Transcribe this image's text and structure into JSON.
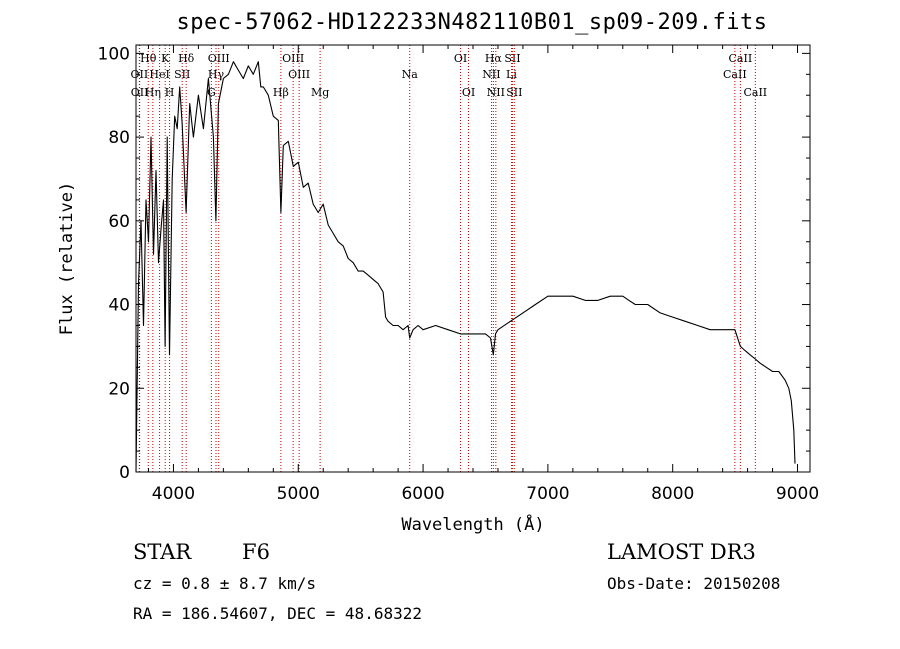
{
  "chart_data": {
    "type": "line",
    "title": "spec-57062-HD122233N482110B01_sp09-209.fits",
    "xlabel": "Wavelength (Å)",
    "ylabel": "Flux (relative)",
    "xlim": [
      3700,
      9100
    ],
    "ylim": [
      0,
      102
    ],
    "xticks": [
      4000,
      5000,
      6000,
      7000,
      8000,
      9000
    ],
    "yticks": [
      0,
      20,
      40,
      60,
      80,
      100
    ],
    "xtick_labels": [
      "4000",
      "5000",
      "6000",
      "7000",
      "8000",
      "9000"
    ],
    "ytick_labels": [
      "0",
      "20",
      "40",
      "60",
      "80",
      "100"
    ],
    "series": [
      {
        "name": "flux",
        "x": [
          3700,
          3720,
          3740,
          3760,
          3780,
          3800,
          3820,
          3840,
          3860,
          3880,
          3900,
          3920,
          3933,
          3950,
          3968,
          3990,
          4010,
          4030,
          4050,
          4070,
          4101,
          4130,
          4160,
          4200,
          4240,
          4280,
          4320,
          4340,
          4360,
          4400,
          4440,
          4480,
          4520,
          4560,
          4600,
          4640,
          4680,
          4700,
          4720,
          4760,
          4800,
          4840,
          4861,
          4880,
          4920,
          4960,
          5000,
          5040,
          5080,
          5120,
          5160,
          5200,
          5240,
          5280,
          5320,
          5360,
          5400,
          5440,
          5480,
          5520,
          5560,
          5600,
          5640,
          5680,
          5700,
          5720,
          5760,
          5800,
          5840,
          5880,
          5893,
          5920,
          5960,
          6000,
          6100,
          6200,
          6300,
          6400,
          6500,
          6540,
          6563,
          6580,
          6600,
          6700,
          6800,
          6900,
          7000,
          7100,
          7200,
          7300,
          7400,
          7500,
          7600,
          7650,
          7700,
          7800,
          7900,
          8000,
          8100,
          8200,
          8300,
          8400,
          8498,
          8520,
          8542,
          8580,
          8620,
          8662,
          8700,
          8750,
          8800,
          8850,
          8900,
          8930,
          8950,
          8970,
          8980
        ],
        "values": [
          0,
          45,
          60,
          35,
          65,
          55,
          80,
          52,
          72,
          50,
          58,
          65,
          30,
          80,
          28,
          70,
          85,
          82,
          92,
          83,
          62,
          88,
          80,
          90,
          82,
          94,
          80,
          60,
          88,
          94,
          95,
          98,
          96,
          94,
          97,
          95,
          98,
          92,
          92,
          90,
          85,
          84,
          62,
          78,
          79,
          73,
          74,
          68,
          69,
          64,
          62,
          64,
          59,
          57,
          55,
          54,
          51,
          50,
          48,
          48,
          47,
          46,
          45,
          43,
          37,
          36,
          35,
          35,
          34,
          35,
          32,
          34,
          35,
          34,
          35,
          34,
          33,
          33,
          33,
          32,
          28,
          33,
          34,
          36,
          38,
          40,
          42,
          42,
          42,
          41,
          41,
          42,
          42,
          41,
          40,
          40,
          38,
          37,
          36,
          35,
          34,
          34,
          34,
          32,
          30,
          29,
          28,
          27,
          26,
          25,
          24,
          24,
          22,
          20,
          17,
          10,
          2
        ],
        "color": "#000000"
      }
    ],
    "lines": [
      {
        "name": "Hθ",
        "wavelength": 3798,
        "row": 1
      },
      {
        "name": "OII",
        "wavelength": 3727,
        "row": 2
      },
      {
        "name": "OII",
        "wavelength": 3729,
        "row": 3
      },
      {
        "name": "Hη",
        "wavelength": 3835,
        "row": 3
      },
      {
        "name": "K",
        "wavelength": 3934,
        "row": 1
      },
      {
        "name": "HeI",
        "wavelength": 3889,
        "row": 2
      },
      {
        "name": "H",
        "wavelength": 3969,
        "row": 3
      },
      {
        "name": "SII",
        "wavelength": 4070,
        "row": 2
      },
      {
        "name": "Hδ",
        "wavelength": 4102,
        "row": 1
      },
      {
        "name": "OIII",
        "wavelength": 4363,
        "row": 1
      },
      {
        "name": "Hγ",
        "wavelength": 4341,
        "row": 2
      },
      {
        "name": "G",
        "wavelength": 4304,
        "row": 3
      },
      {
        "name": "Hβ",
        "wavelength": 4861,
        "row": 3
      },
      {
        "name": "OIII",
        "wavelength": 4959,
        "row": 1
      },
      {
        "name": "OIII",
        "wavelength": 5007,
        "row": 2
      },
      {
        "name": "Mg",
        "wavelength": 5175,
        "row": 3
      },
      {
        "name": "Na",
        "wavelength": 5893,
        "row": 2
      },
      {
        "name": "OI",
        "wavelength": 6300,
        "row": 1
      },
      {
        "name": "OI",
        "wavelength": 6364,
        "row": 3
      },
      {
        "name": "Hα",
        "wavelength": 6563,
        "row": 1
      },
      {
        "name": "NII",
        "wavelength": 6548,
        "row": 2
      },
      {
        "name": "NII",
        "wavelength": 6583,
        "row": 3
      },
      {
        "name": "SII",
        "wavelength": 6716,
        "row": 1
      },
      {
        "name": "Li",
        "wavelength": 6708,
        "row": 2
      },
      {
        "name": "SII",
        "wavelength": 6731,
        "row": 3
      },
      {
        "name": "CaII",
        "wavelength": 8542,
        "row": 1
      },
      {
        "name": "CaII",
        "wavelength": 8498,
        "row": 2
      },
      {
        "name": "CaII",
        "wavelength": 8662,
        "row": 3
      }
    ],
    "line_color": "#cc0000"
  },
  "info": {
    "object_class": "STAR",
    "subclass": "F6",
    "survey": "LAMOST DR3",
    "cz": "cz = 0.8 ± 8.7 km/s",
    "obs_date": "Obs-Date: 20150208",
    "coords": "RA = 186.54607, DEC =  48.68322"
  }
}
